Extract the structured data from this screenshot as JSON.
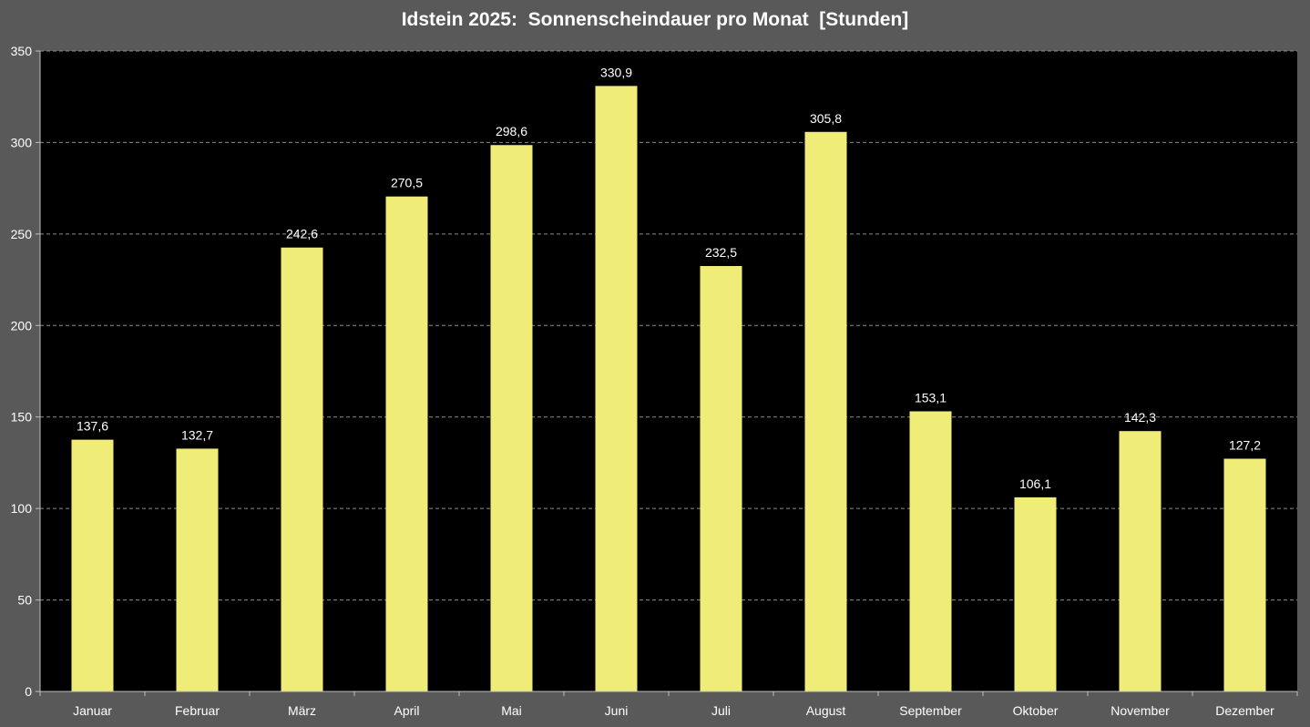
{
  "chart_data": {
    "type": "bar",
    "title": "Idstein 2025:  Sonnenscheindauer pro Monat  [Stunden]",
    "xlabel": "",
    "ylabel": "",
    "categories": [
      "Januar",
      "Februar",
      "März",
      "April",
      "Mai",
      "Juni",
      "Juli",
      "August",
      "September",
      "Oktober",
      "November",
      "Dezember"
    ],
    "values": [
      137.6,
      132.7,
      242.6,
      270.5,
      298.6,
      330.9,
      232.5,
      305.8,
      153.1,
      106.1,
      142.3,
      127.2
    ],
    "value_labels": [
      "137,6",
      "132,7",
      "242,6",
      "270,5",
      "298,6",
      "330,9",
      "232,5",
      "305,8",
      "153,1",
      "106,1",
      "142,3",
      "127,2"
    ],
    "ylim": [
      0,
      350
    ],
    "yticks": [
      0,
      50,
      100,
      150,
      200,
      250,
      300,
      350
    ],
    "grid": true,
    "legend": "none",
    "colors": {
      "bar": "#F0EC78",
      "plot_background": "#000000",
      "chart_background": "#595959",
      "gridline": "#8c8c8c",
      "text": "#ffffff"
    }
  }
}
